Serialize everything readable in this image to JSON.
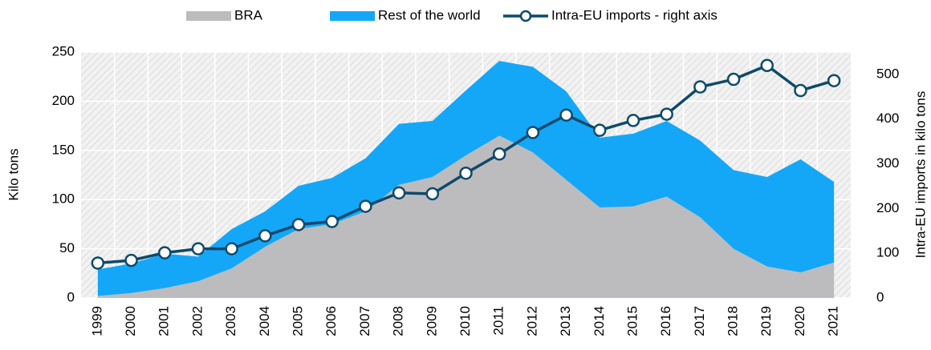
{
  "chart_data": {
    "type": "stacked_area_line",
    "categories": [
      "1999",
      "2000",
      "2001",
      "2002",
      "2003",
      "2004",
      "2005",
      "2006",
      "2007",
      "2008",
      "2009",
      "2010",
      "2011",
      "2012",
      "2013",
      "2014",
      "2015",
      "2016",
      "2017",
      "2018",
      "2019",
      "2020",
      "2021"
    ],
    "y_label": "Kilo tons",
    "y2_label": "Intra-EU imports in kilo tons",
    "series": [
      {
        "name": "BRA",
        "color": "#bcbcbe",
        "values": [
          2,
          5,
          10,
          17,
          30,
          52,
          70,
          75,
          88,
          115,
          123,
          145,
          165,
          148,
          120,
          92,
          93,
          103,
          82,
          50,
          32,
          26,
          36
        ]
      },
      {
        "name": "Rest of the world",
        "color": "#14a7f8",
        "values": [
          27,
          30,
          35,
          25,
          40,
          36,
          44,
          47,
          54,
          62,
          57,
          66,
          76,
          87,
          90,
          71,
          74,
          77,
          78,
          80,
          91,
          115,
          82
        ]
      },
      {
        "name": "Intra-EU imports - right axis",
        "color": "#0d4a6b",
        "axis": "y2",
        "values": [
          78,
          84,
          101,
          110,
          110,
          139,
          164,
          171,
          205,
          235,
          233,
          279,
          322,
          370,
          409,
          375,
          397,
          411,
          472,
          489,
          520,
          464,
          486
        ]
      }
    ],
    "ylim": [
      0,
      250
    ],
    "yticks": [
      0,
      50,
      100,
      150,
      200,
      250
    ],
    "y2lim": [
      0,
      550
    ],
    "y2ticks": [
      0,
      100,
      200,
      300,
      400,
      500
    ],
    "grid": true,
    "legend": "top"
  }
}
